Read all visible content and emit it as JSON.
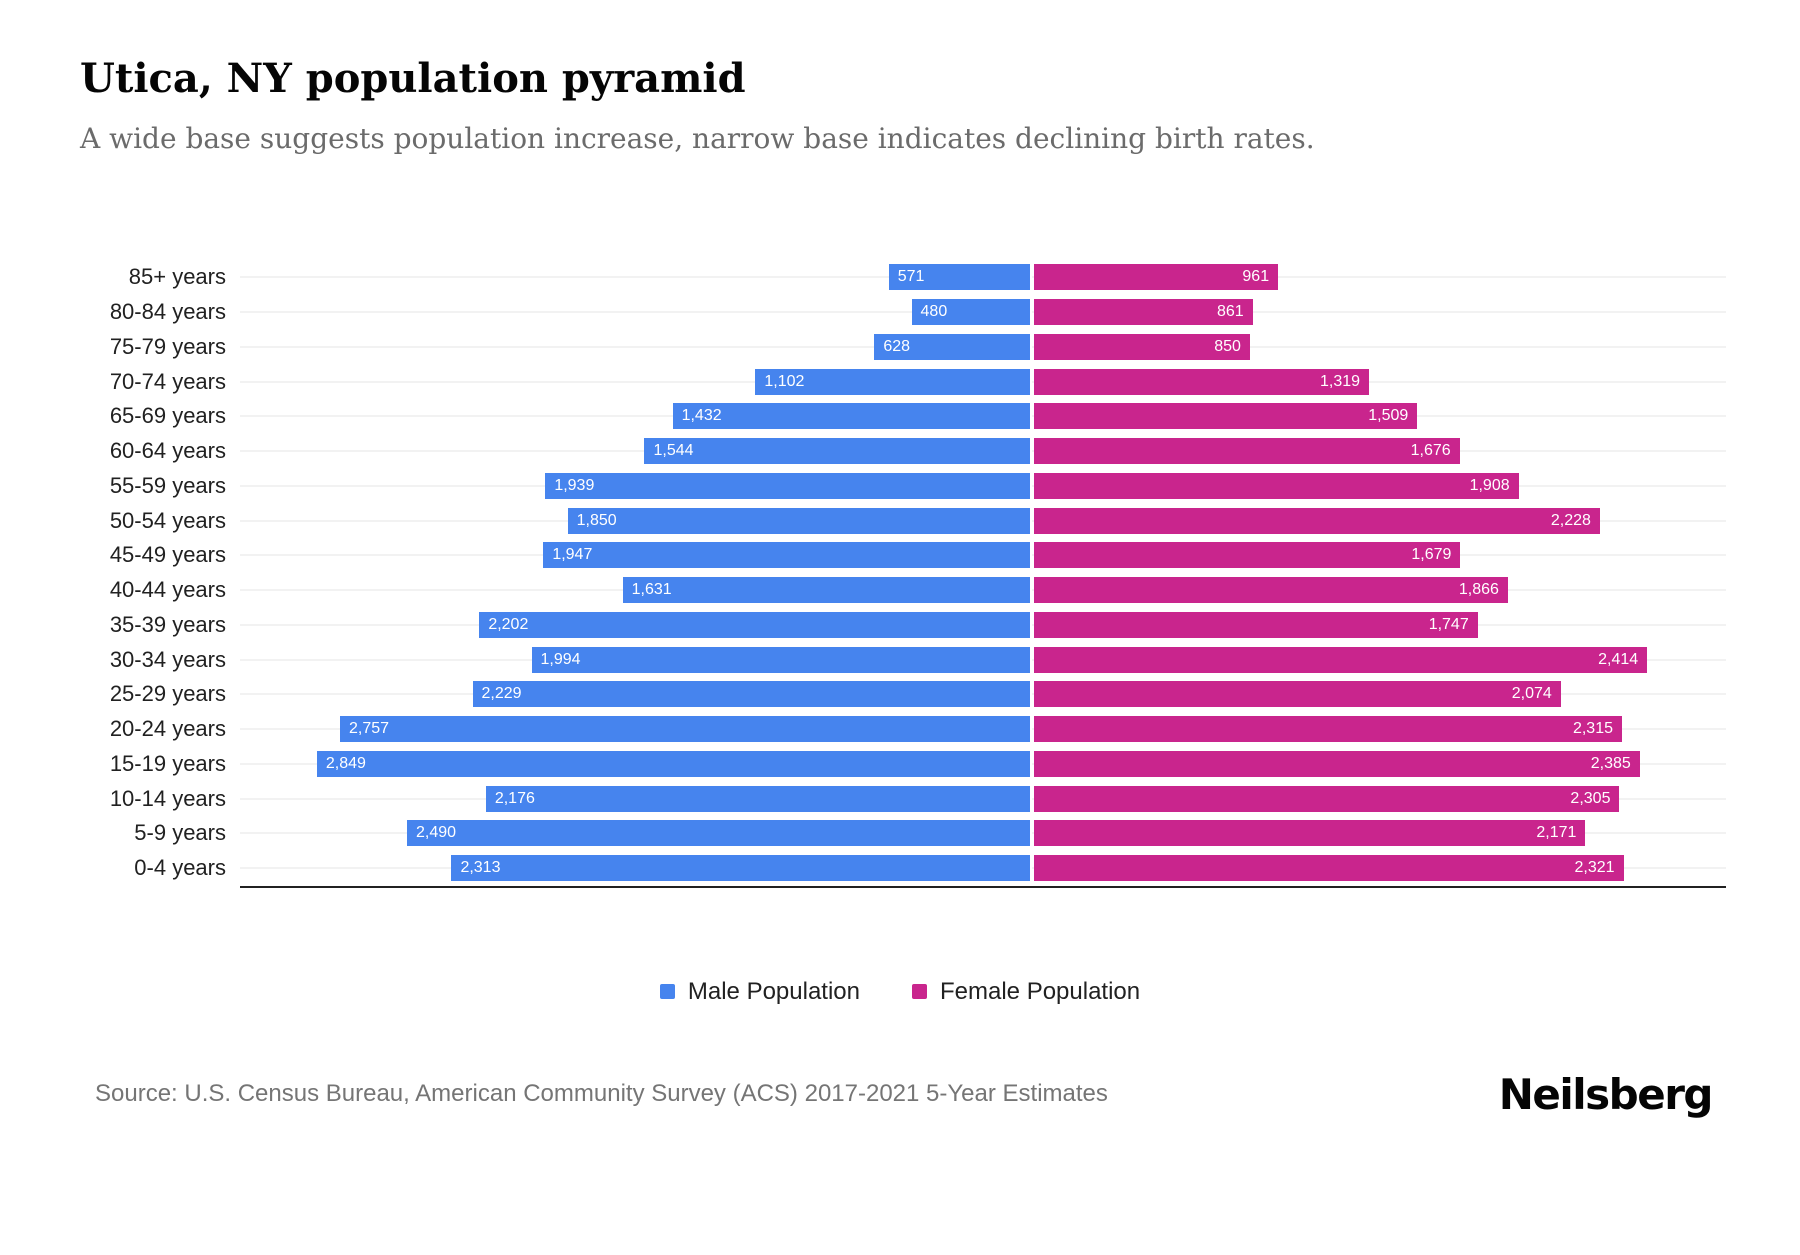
{
  "chart_data": {
    "type": "bar",
    "variant": "population-pyramid",
    "title": "Utica, NY population pyramid",
    "subtitle": "A wide base suggests population increase, narrow base indicates declining birth rates.",
    "categories": [
      "85+ years",
      "80-84 years",
      "75-79 years",
      "70-74 years",
      "65-69 years",
      "60-64 years",
      "55-59 years",
      "50-54 years",
      "45-49 years",
      "40-44 years",
      "35-39 years",
      "30-34 years",
      "25-29 years",
      "20-24 years",
      "15-19 years",
      "10-14 years",
      "5-9 years",
      "0-4 years"
    ],
    "series": [
      {
        "name": "Male Population",
        "side": "left",
        "color": "#4684EE",
        "values": [
          571,
          480,
          628,
          1102,
          1432,
          1544,
          1939,
          1850,
          1947,
          1631,
          2202,
          1994,
          2229,
          2757,
          2849,
          2176,
          2490,
          2313
        ]
      },
      {
        "name": "Female Population",
        "side": "right",
        "color": "#C9258D",
        "values": [
          961,
          861,
          850,
          1319,
          1509,
          1676,
          1908,
          2228,
          1679,
          1866,
          1747,
          2414,
          2074,
          2315,
          2385,
          2305,
          2171,
          2321
        ]
      }
    ],
    "value_labels": "inside-end, comma-formatted, white",
    "grid": "light row separator lines, no vertical gridlines",
    "axis": {
      "bottom_line": true,
      "tick_labels_shown": false
    },
    "legend_position": "bottom-center"
  },
  "footer": {
    "source": "Source: U.S. Census Bureau, American Community Survey (ACS) 2017-2021 5-Year Estimates",
    "brand": "Neilsberg"
  }
}
